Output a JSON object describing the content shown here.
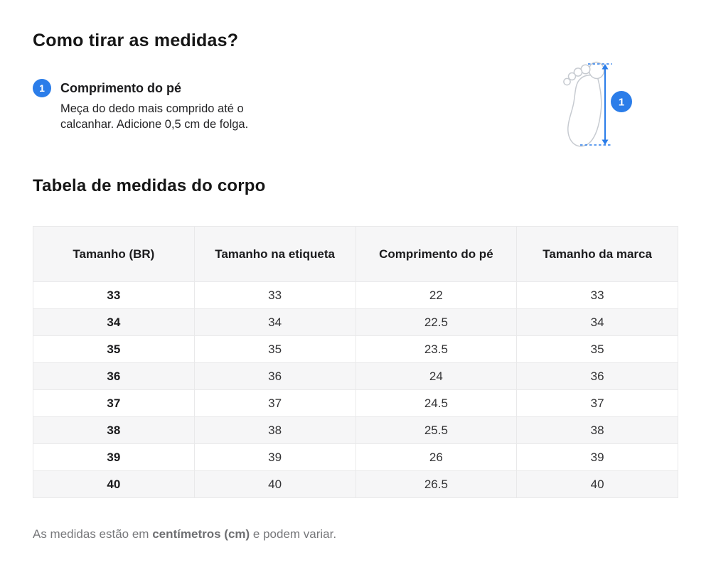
{
  "page": {
    "title": "Como tirar as medidas?",
    "section_title": "Tabela de medidas do corpo",
    "footnote": {
      "prefix": "As medidas estão em ",
      "bold": "centímetros (cm)",
      "suffix": " e podem variar."
    }
  },
  "steps": [
    {
      "number": "1",
      "label": "Comprimento do pé",
      "description": "Meça do dedo mais comprido até o calcanhar. Adicione 0,5 cm de folga."
    }
  ],
  "figure": {
    "marker": "1"
  },
  "table": {
    "headers": [
      "Tamanho (BR)",
      "Tamanho na etiqueta",
      "Comprimento do pé",
      "Tamanho da marca"
    ],
    "rows": [
      [
        "33",
        "33",
        "22",
        "33"
      ],
      [
        "34",
        "34",
        "22.5",
        "34"
      ],
      [
        "35",
        "35",
        "23.5",
        "35"
      ],
      [
        "36",
        "36",
        "24",
        "36"
      ],
      [
        "37",
        "37",
        "24.5",
        "37"
      ],
      [
        "38",
        "38",
        "25.5",
        "38"
      ],
      [
        "39",
        "39",
        "26",
        "39"
      ],
      [
        "40",
        "40",
        "26.5",
        "40"
      ]
    ]
  },
  "colors": {
    "accent_blue": "#2b7de9",
    "row_alt_bg": "#f6f6f7",
    "border": "#e9e9ea",
    "muted_text": "#77787b"
  }
}
